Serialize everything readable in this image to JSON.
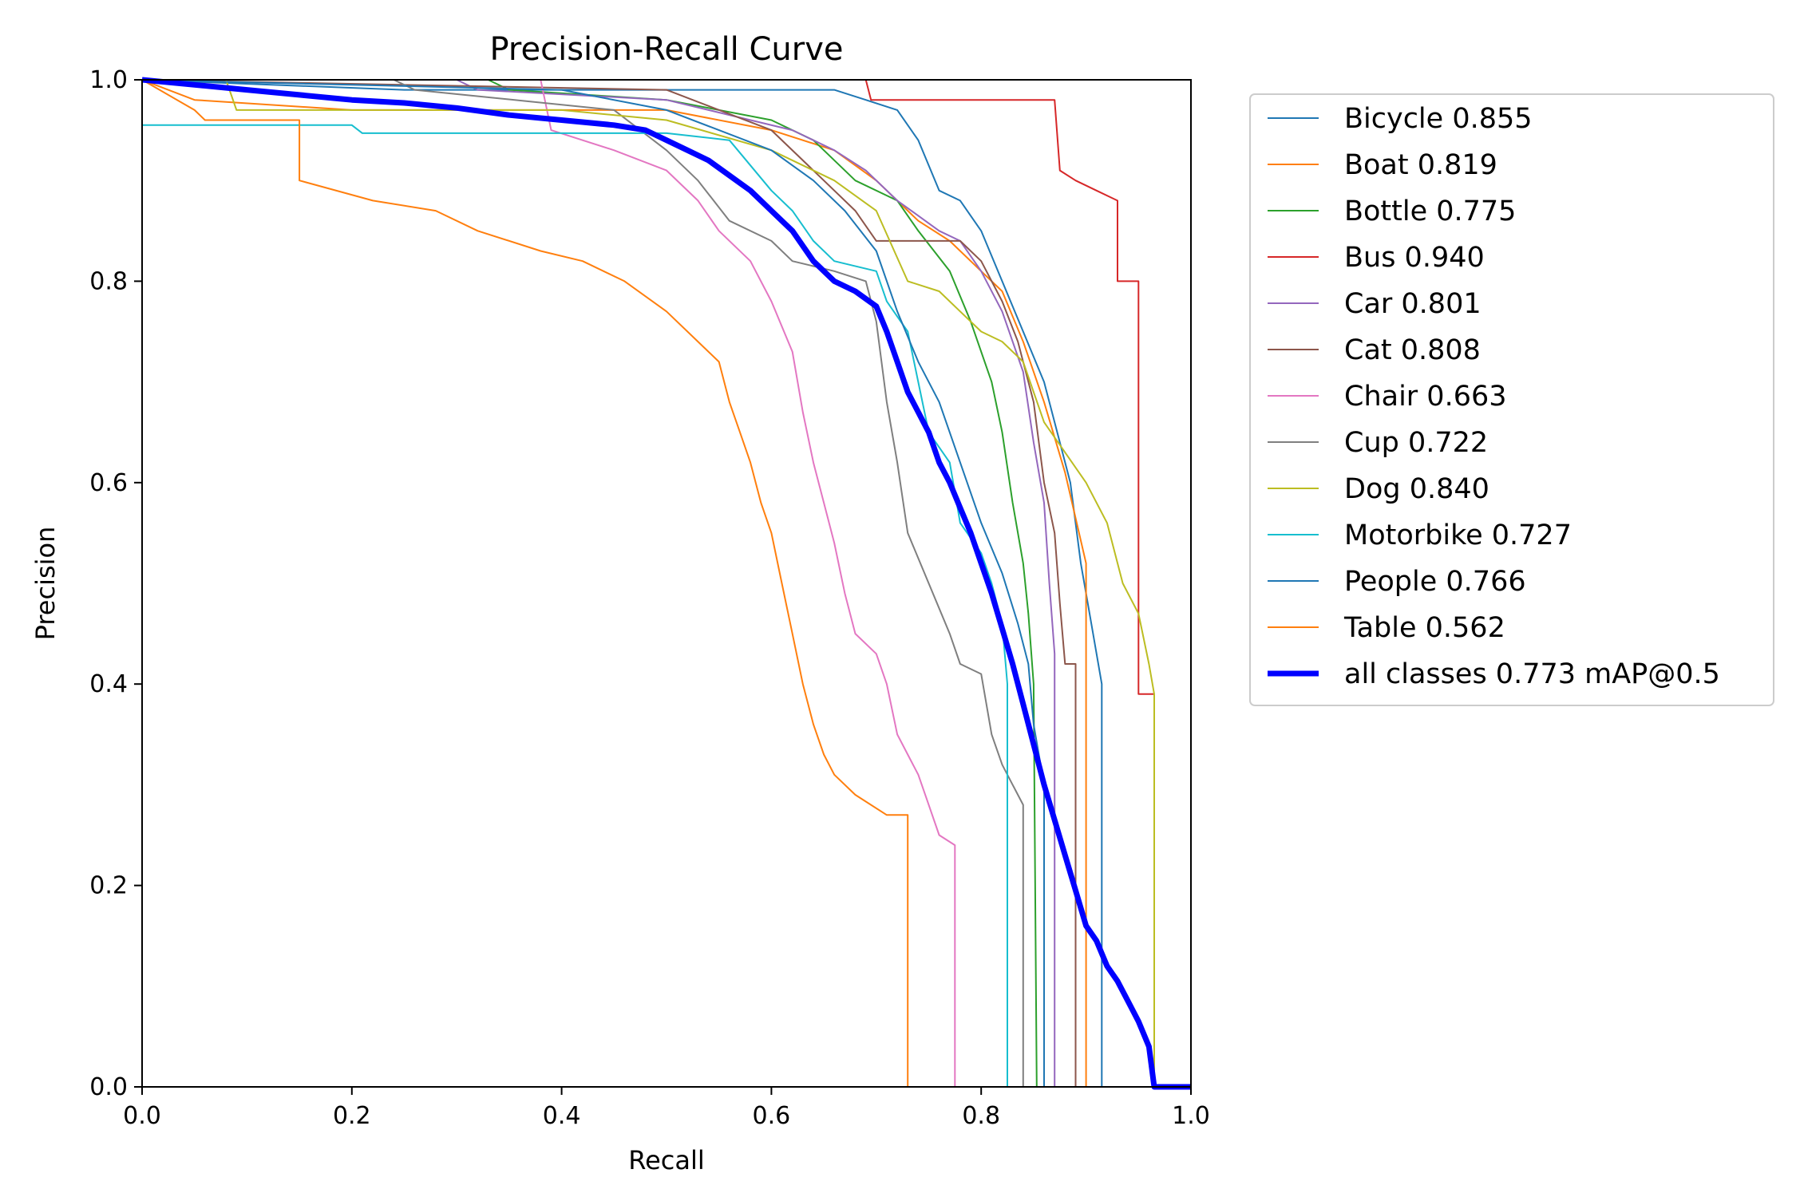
{
  "chart_data": {
    "type": "line",
    "title": "Precision-Recall Curve",
    "xlabel": "Recall",
    "ylabel": "Precision",
    "xlim": [
      0,
      1
    ],
    "ylim": [
      0,
      1
    ],
    "xticks": [
      "0.0",
      "0.2",
      "0.4",
      "0.6",
      "0.8",
      "1.0"
    ],
    "yticks": [
      "0.0",
      "0.2",
      "0.4",
      "0.6",
      "0.8",
      "1.0"
    ],
    "grid": false,
    "legend_position": "outside-right-top",
    "series": [
      {
        "name": "Bicycle 0.855",
        "color": "#1f77b4",
        "width": 2,
        "points": [
          [
            0,
            1
          ],
          [
            0.25,
            0.99
          ],
          [
            0.55,
            0.99
          ],
          [
            0.66,
            0.99
          ],
          [
            0.69,
            0.98
          ],
          [
            0.72,
            0.97
          ],
          [
            0.74,
            0.94
          ],
          [
            0.76,
            0.89
          ],
          [
            0.78,
            0.88
          ],
          [
            0.8,
            0.85
          ],
          [
            0.82,
            0.8
          ],
          [
            0.84,
            0.75
          ],
          [
            0.86,
            0.7
          ],
          [
            0.87,
            0.66
          ],
          [
            0.885,
            0.6
          ],
          [
            0.895,
            0.52
          ],
          [
            0.905,
            0.46
          ],
          [
            0.915,
            0.4
          ],
          [
            0.915,
            0
          ]
        ]
      },
      {
        "name": "Boat 0.819",
        "color": "#ff7f0e",
        "width": 2,
        "points": [
          [
            0,
            1
          ],
          [
            0.05,
            0.98
          ],
          [
            0.2,
            0.97
          ],
          [
            0.5,
            0.97
          ],
          [
            0.6,
            0.95
          ],
          [
            0.66,
            0.93
          ],
          [
            0.7,
            0.9
          ],
          [
            0.74,
            0.86
          ],
          [
            0.77,
            0.84
          ],
          [
            0.8,
            0.81
          ],
          [
            0.82,
            0.79
          ],
          [
            0.84,
            0.74
          ],
          [
            0.86,
            0.68
          ],
          [
            0.88,
            0.61
          ],
          [
            0.9,
            0.52
          ],
          [
            0.9,
            0
          ]
        ]
      },
      {
        "name": "Bottle 0.775",
        "color": "#2ca02c",
        "width": 2,
        "points": [
          [
            0,
            1
          ],
          [
            0.33,
            1
          ],
          [
            0.35,
            0.99
          ],
          [
            0.5,
            0.98
          ],
          [
            0.6,
            0.96
          ],
          [
            0.64,
            0.94
          ],
          [
            0.68,
            0.9
          ],
          [
            0.72,
            0.88
          ],
          [
            0.74,
            0.85
          ],
          [
            0.77,
            0.81
          ],
          [
            0.79,
            0.76
          ],
          [
            0.81,
            0.7
          ],
          [
            0.82,
            0.65
          ],
          [
            0.83,
            0.58
          ],
          [
            0.84,
            0.52
          ],
          [
            0.845,
            0.47
          ],
          [
            0.85,
            0.4
          ],
          [
            0.853,
            0
          ]
        ]
      },
      {
        "name": "Bus 0.940",
        "color": "#d62728",
        "width": 2,
        "points": [
          [
            0,
            1
          ],
          [
            0.69,
            1
          ],
          [
            0.695,
            0.98
          ],
          [
            0.87,
            0.98
          ],
          [
            0.875,
            0.91
          ],
          [
            0.89,
            0.9
          ],
          [
            0.91,
            0.89
          ],
          [
            0.93,
            0.88
          ],
          [
            0.93,
            0.8
          ],
          [
            0.95,
            0.8
          ],
          [
            0.95,
            0.39
          ],
          [
            0.965,
            0.39
          ],
          [
            0.965,
            0
          ]
        ]
      },
      {
        "name": "Car 0.801",
        "color": "#9467bd",
        "width": 2,
        "points": [
          [
            0,
            1
          ],
          [
            0.3,
            1
          ],
          [
            0.32,
            0.99
          ],
          [
            0.5,
            0.98
          ],
          [
            0.62,
            0.95
          ],
          [
            0.66,
            0.93
          ],
          [
            0.69,
            0.91
          ],
          [
            0.72,
            0.88
          ],
          [
            0.76,
            0.85
          ],
          [
            0.78,
            0.84
          ],
          [
            0.8,
            0.81
          ],
          [
            0.82,
            0.77
          ],
          [
            0.84,
            0.71
          ],
          [
            0.85,
            0.64
          ],
          [
            0.86,
            0.58
          ],
          [
            0.865,
            0.5
          ],
          [
            0.87,
            0.43
          ],
          [
            0.87,
            0
          ]
        ]
      },
      {
        "name": "Cat 0.808",
        "color": "#8c564b",
        "width": 2,
        "points": [
          [
            0,
            1
          ],
          [
            0.5,
            0.99
          ],
          [
            0.6,
            0.95
          ],
          [
            0.65,
            0.9
          ],
          [
            0.68,
            0.87
          ],
          [
            0.7,
            0.84
          ],
          [
            0.78,
            0.84
          ],
          [
            0.8,
            0.82
          ],
          [
            0.82,
            0.78
          ],
          [
            0.835,
            0.74
          ],
          [
            0.85,
            0.68
          ],
          [
            0.86,
            0.6
          ],
          [
            0.87,
            0.55
          ],
          [
            0.875,
            0.48
          ],
          [
            0.88,
            0.42
          ],
          [
            0.89,
            0.42
          ],
          [
            0.89,
            0
          ]
        ]
      },
      {
        "name": "Chair 0.663",
        "color": "#e377c2",
        "width": 2,
        "points": [
          [
            0,
            1
          ],
          [
            0.38,
            1
          ],
          [
            0.39,
            0.95
          ],
          [
            0.45,
            0.93
          ],
          [
            0.5,
            0.91
          ],
          [
            0.53,
            0.88
          ],
          [
            0.55,
            0.85
          ],
          [
            0.58,
            0.82
          ],
          [
            0.6,
            0.78
          ],
          [
            0.62,
            0.73
          ],
          [
            0.63,
            0.67
          ],
          [
            0.64,
            0.62
          ],
          [
            0.65,
            0.58
          ],
          [
            0.66,
            0.54
          ],
          [
            0.67,
            0.49
          ],
          [
            0.68,
            0.45
          ],
          [
            0.7,
            0.43
          ],
          [
            0.71,
            0.4
          ],
          [
            0.72,
            0.35
          ],
          [
            0.73,
            0.33
          ],
          [
            0.74,
            0.31
          ],
          [
            0.75,
            0.28
          ],
          [
            0.76,
            0.25
          ],
          [
            0.775,
            0.24
          ],
          [
            0.775,
            0
          ]
        ]
      },
      {
        "name": "Cup 0.722",
        "color": "#7f7f7f",
        "width": 2,
        "points": [
          [
            0,
            1
          ],
          [
            0.24,
            1
          ],
          [
            0.26,
            0.99
          ],
          [
            0.45,
            0.97
          ],
          [
            0.5,
            0.93
          ],
          [
            0.53,
            0.9
          ],
          [
            0.56,
            0.86
          ],
          [
            0.6,
            0.84
          ],
          [
            0.62,
            0.82
          ],
          [
            0.66,
            0.81
          ],
          [
            0.69,
            0.8
          ],
          [
            0.7,
            0.76
          ],
          [
            0.71,
            0.68
          ],
          [
            0.72,
            0.62
          ],
          [
            0.73,
            0.55
          ],
          [
            0.75,
            0.5
          ],
          [
            0.77,
            0.45
          ],
          [
            0.78,
            0.42
          ],
          [
            0.8,
            0.41
          ],
          [
            0.81,
            0.35
          ],
          [
            0.82,
            0.32
          ],
          [
            0.83,
            0.3
          ],
          [
            0.84,
            0.28
          ],
          [
            0.84,
            0
          ]
        ]
      },
      {
        "name": "Dog 0.840",
        "color": "#bcbd22",
        "width": 2,
        "points": [
          [
            0,
            1
          ],
          [
            0.08,
            1
          ],
          [
            0.09,
            0.97
          ],
          [
            0.4,
            0.97
          ],
          [
            0.5,
            0.96
          ],
          [
            0.6,
            0.93
          ],
          [
            0.66,
            0.9
          ],
          [
            0.7,
            0.87
          ],
          [
            0.73,
            0.8
          ],
          [
            0.76,
            0.79
          ],
          [
            0.78,
            0.77
          ],
          [
            0.8,
            0.75
          ],
          [
            0.82,
            0.74
          ],
          [
            0.84,
            0.72
          ],
          [
            0.86,
            0.66
          ],
          [
            0.88,
            0.63
          ],
          [
            0.9,
            0.6
          ],
          [
            0.92,
            0.56
          ],
          [
            0.935,
            0.5
          ],
          [
            0.95,
            0.47
          ],
          [
            0.96,
            0.42
          ],
          [
            0.965,
            0.39
          ],
          [
            0.965,
            0
          ]
        ]
      },
      {
        "name": "Motorbike 0.727",
        "color": "#17becf",
        "width": 2,
        "points": [
          [
            0,
            0.955
          ],
          [
            0.2,
            0.955
          ],
          [
            0.21,
            0.947
          ],
          [
            0.5,
            0.947
          ],
          [
            0.56,
            0.94
          ],
          [
            0.6,
            0.89
          ],
          [
            0.62,
            0.87
          ],
          [
            0.64,
            0.84
          ],
          [
            0.66,
            0.82
          ],
          [
            0.7,
            0.81
          ],
          [
            0.71,
            0.78
          ],
          [
            0.73,
            0.75
          ],
          [
            0.75,
            0.65
          ],
          [
            0.77,
            0.62
          ],
          [
            0.78,
            0.56
          ],
          [
            0.8,
            0.53
          ],
          [
            0.81,
            0.5
          ],
          [
            0.82,
            0.46
          ],
          [
            0.825,
            0.4
          ],
          [
            0.825,
            0
          ]
        ]
      },
      {
        "name": "People 0.766",
        "color": "#1f77b4",
        "width": 2,
        "points": [
          [
            0,
            1
          ],
          [
            0.4,
            0.99
          ],
          [
            0.5,
            0.97
          ],
          [
            0.6,
            0.93
          ],
          [
            0.64,
            0.9
          ],
          [
            0.67,
            0.87
          ],
          [
            0.7,
            0.83
          ],
          [
            0.72,
            0.77
          ],
          [
            0.74,
            0.72
          ],
          [
            0.76,
            0.68
          ],
          [
            0.78,
            0.62
          ],
          [
            0.8,
            0.56
          ],
          [
            0.82,
            0.51
          ],
          [
            0.835,
            0.46
          ],
          [
            0.845,
            0.42
          ],
          [
            0.85,
            0.36
          ],
          [
            0.86,
            0.3
          ],
          [
            0.86,
            0
          ]
        ]
      },
      {
        "name": "Table 0.562",
        "color": "#ff7f0e",
        "width": 2,
        "points": [
          [
            0,
            1
          ],
          [
            0.05,
            0.97
          ],
          [
            0.06,
            0.96
          ],
          [
            0.15,
            0.96
          ],
          [
            0.15,
            0.9
          ],
          [
            0.22,
            0.88
          ],
          [
            0.28,
            0.87
          ],
          [
            0.32,
            0.85
          ],
          [
            0.38,
            0.83
          ],
          [
            0.42,
            0.82
          ],
          [
            0.46,
            0.8
          ],
          [
            0.5,
            0.77
          ],
          [
            0.53,
            0.74
          ],
          [
            0.55,
            0.72
          ],
          [
            0.56,
            0.68
          ],
          [
            0.57,
            0.65
          ],
          [
            0.58,
            0.62
          ],
          [
            0.59,
            0.58
          ],
          [
            0.6,
            0.55
          ],
          [
            0.61,
            0.5
          ],
          [
            0.62,
            0.45
          ],
          [
            0.63,
            0.4
          ],
          [
            0.64,
            0.36
          ],
          [
            0.65,
            0.33
          ],
          [
            0.66,
            0.31
          ],
          [
            0.68,
            0.29
          ],
          [
            0.71,
            0.27
          ],
          [
            0.73,
            0.27
          ],
          [
            0.73,
            0
          ]
        ]
      },
      {
        "name": "all classes 0.773 mAP@0.5",
        "color": "#0000ff",
        "width": 7,
        "points": [
          [
            0,
            1
          ],
          [
            0.05,
            0.995
          ],
          [
            0.1,
            0.99
          ],
          [
            0.15,
            0.985
          ],
          [
            0.2,
            0.98
          ],
          [
            0.25,
            0.977
          ],
          [
            0.3,
            0.972
          ],
          [
            0.35,
            0.965
          ],
          [
            0.4,
            0.96
          ],
          [
            0.45,
            0.955
          ],
          [
            0.48,
            0.95
          ],
          [
            0.5,
            0.94
          ],
          [
            0.52,
            0.93
          ],
          [
            0.54,
            0.92
          ],
          [
            0.56,
            0.905
          ],
          [
            0.58,
            0.89
          ],
          [
            0.6,
            0.87
          ],
          [
            0.62,
            0.85
          ],
          [
            0.64,
            0.82
          ],
          [
            0.66,
            0.8
          ],
          [
            0.68,
            0.79
          ],
          [
            0.7,
            0.775
          ],
          [
            0.71,
            0.75
          ],
          [
            0.72,
            0.72
          ],
          [
            0.73,
            0.69
          ],
          [
            0.74,
            0.67
          ],
          [
            0.75,
            0.65
          ],
          [
            0.76,
            0.62
          ],
          [
            0.77,
            0.6
          ],
          [
            0.78,
            0.575
          ],
          [
            0.79,
            0.55
          ],
          [
            0.8,
            0.52
          ],
          [
            0.81,
            0.49
          ],
          [
            0.82,
            0.455
          ],
          [
            0.83,
            0.42
          ],
          [
            0.84,
            0.38
          ],
          [
            0.85,
            0.34
          ],
          [
            0.86,
            0.3
          ],
          [
            0.87,
            0.265
          ],
          [
            0.88,
            0.23
          ],
          [
            0.89,
            0.195
          ],
          [
            0.9,
            0.16
          ],
          [
            0.91,
            0.145
          ],
          [
            0.92,
            0.12
          ],
          [
            0.93,
            0.105
          ],
          [
            0.94,
            0.085
          ],
          [
            0.95,
            0.065
          ],
          [
            0.96,
            0.04
          ],
          [
            0.965,
            0
          ],
          [
            1.0,
            0
          ]
        ]
      }
    ]
  }
}
